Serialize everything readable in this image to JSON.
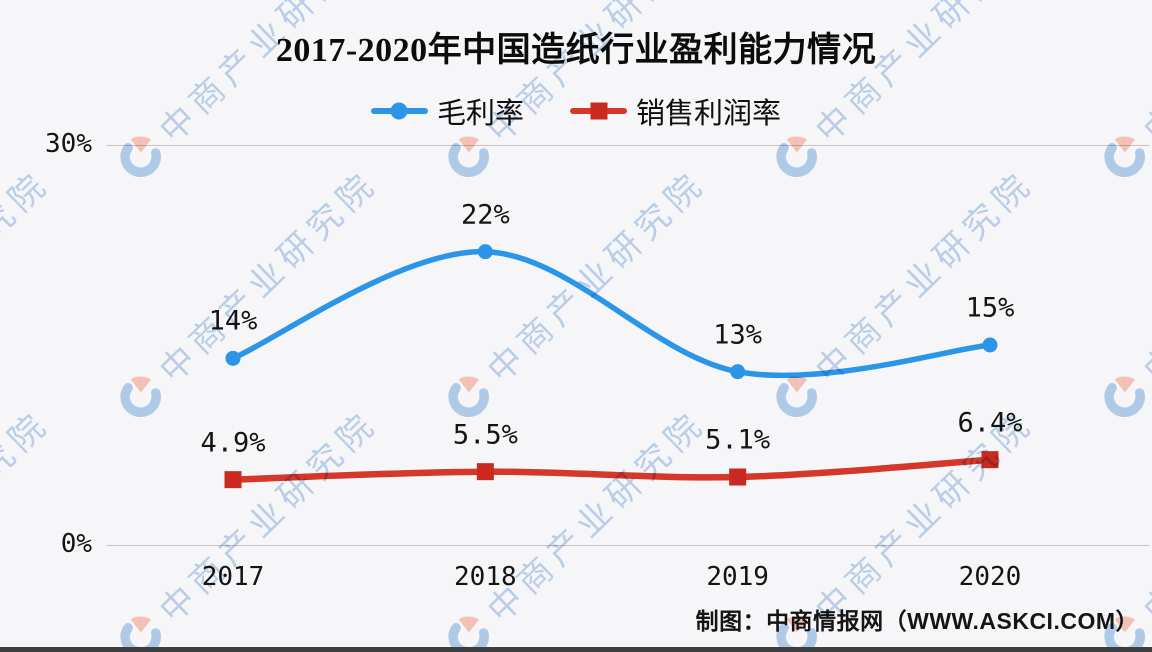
{
  "title": "2017-2020年中国造纸行业盈利能力情况",
  "legend": {
    "items": [
      {
        "label": "毛利率",
        "marker": "circle",
        "color": "#2b96e7"
      },
      {
        "label": "销售利润率",
        "marker": "square",
        "color": "#d5372b"
      }
    ]
  },
  "y_axis": {
    "ticks": [
      {
        "label": "30%",
        "value": 30
      },
      {
        "label": "0%",
        "value": 0
      }
    ]
  },
  "footer": {
    "credit": "制图：中商情报网（WWW.ASKCI.COM）"
  },
  "watermark": {
    "text": "中商产业研究院"
  },
  "colors": {
    "background": "#f6f6f8",
    "grid": "#c4c4c8",
    "label_text": "#141414",
    "blue": "#2b96e7",
    "red": "#d5372b",
    "red_marker": "#c9291e",
    "bottom_bar": "#3e3e3e",
    "watermark_text": "rgba(105,155,215,0.42)",
    "watermark_logo_blue": "rgba(110,165,220,0.5)",
    "watermark_logo_pink": "rgba(244,132,102,0.45)"
  },
  "chart_data": {
    "type": "line",
    "title": "2017-2020年中国造纸行业盈利能力情况",
    "categories": [
      "2017",
      "2018",
      "2019",
      "2020"
    ],
    "series": [
      {
        "name": "毛利率",
        "values": [
          14,
          22,
          13,
          15
        ],
        "labels": [
          "14%",
          "22%",
          "13%",
          "15%"
        ],
        "color": "#2b96e7",
        "marker": "circle",
        "line_style": "smooth"
      },
      {
        "name": "销售利润率",
        "values": [
          4.9,
          5.5,
          5.1,
          6.4
        ],
        "labels": [
          "4.9%",
          "5.5%",
          "5.1%",
          "6.4%"
        ],
        "color": "#d5372b",
        "marker": "square",
        "line_style": "smooth"
      }
    ],
    "ylim": [
      0,
      30
    ],
    "xlabel": "",
    "ylabel": "",
    "grid": "y-ticks-only",
    "legend_position": "top",
    "credit": "制图：中商情报网（WWW.ASKCI.COM）"
  }
}
